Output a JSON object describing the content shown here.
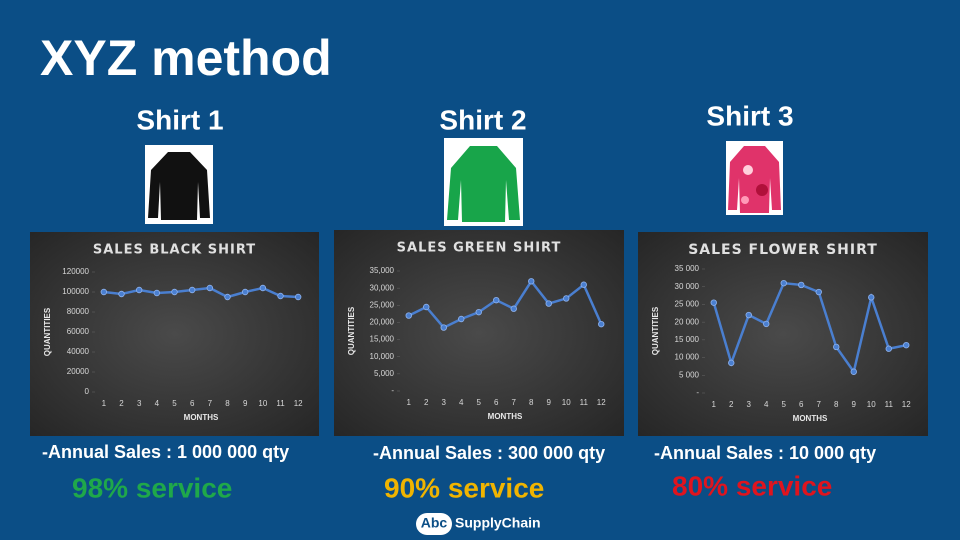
{
  "title": "XYZ method",
  "products": [
    {
      "name": "Shirt 1",
      "annual_sales": "-Annual Sales : 1 000 000 qty",
      "service": "98% service",
      "service_color": "#1fa84a"
    },
    {
      "name": "Shirt 2",
      "annual_sales": "-Annual Sales : 300 000 qty",
      "service": "90% service",
      "service_color": "#f0b400"
    },
    {
      "name": "Shirt 3",
      "annual_sales": "-Annual Sales :  10 000 qty",
      "service": "80% service",
      "service_color": "#e0141e"
    }
  ],
  "logo": {
    "mark": "Abc",
    "text": "SupplyChain"
  },
  "chart_data": [
    {
      "type": "line",
      "title": "SALES BLACK SHIRT",
      "x_label": "MONTHS",
      "y_label": "QUANTITIES",
      "color": "#4a7fd0",
      "categories": [
        "1",
        "2",
        "3",
        "4",
        "5",
        "6",
        "7",
        "8",
        "9",
        "10",
        "11",
        "12"
      ],
      "values": [
        100000,
        98000,
        102000,
        99000,
        100000,
        102000,
        104000,
        95000,
        100000,
        104000,
        96000,
        95000
      ],
      "ylim": [
        0,
        120000
      ],
      "yticks": [
        0,
        20000,
        40000,
        60000,
        80000,
        100000,
        120000
      ]
    },
    {
      "type": "line",
      "title": "SALES GREEN SHIRT",
      "x_label": "MONTHS",
      "y_label": "QUANTITIES",
      "color": "#4a7fd0",
      "categories": [
        "1",
        "2",
        "3",
        "4",
        "5",
        "6",
        "7",
        "8",
        "9",
        "10",
        "11",
        "12"
      ],
      "values": [
        22000,
        24500,
        18500,
        21000,
        23000,
        26500,
        24000,
        32000,
        25500,
        27000,
        31000,
        19500
      ],
      "ylim": [
        0,
        35000
      ],
      "yticks": [
        {
          "value": 0,
          "label": "-"
        },
        {
          "value": 5000,
          "label": "5,000"
        },
        {
          "value": 10000,
          "label": "10,000"
        },
        {
          "value": 15000,
          "label": "15,000"
        },
        {
          "value": 20000,
          "label": "20,000"
        },
        {
          "value": 25000,
          "label": "25,000"
        },
        {
          "value": 30000,
          "label": "30,000"
        },
        {
          "value": 35000,
          "label": "35,000"
        }
      ]
    },
    {
      "type": "line",
      "title": "SALES FLOWER SHIRT",
      "x_label": "MONTHS",
      "y_label": "QUANTITIES",
      "color": "#4a7fd0",
      "categories": [
        "1",
        "2",
        "3",
        "4",
        "5",
        "6",
        "7",
        "8",
        "9",
        "10",
        "11",
        "12"
      ],
      "values": [
        25500,
        8500,
        22000,
        19500,
        31000,
        30500,
        28500,
        13000,
        6000,
        27000,
        12500,
        13500
      ],
      "ylim": [
        0,
        35000
      ],
      "yticks": [
        {
          "value": 0,
          "label": "-"
        },
        {
          "value": 5000,
          "label": "5 000"
        },
        {
          "value": 10000,
          "label": "10 000"
        },
        {
          "value": 15000,
          "label": "15 000"
        },
        {
          "value": 20000,
          "label": "20 000"
        },
        {
          "value": 25000,
          "label": "25 000"
        },
        {
          "value": 30000,
          "label": "30 000"
        },
        {
          "value": 35000,
          "label": "35 000"
        }
      ]
    }
  ]
}
